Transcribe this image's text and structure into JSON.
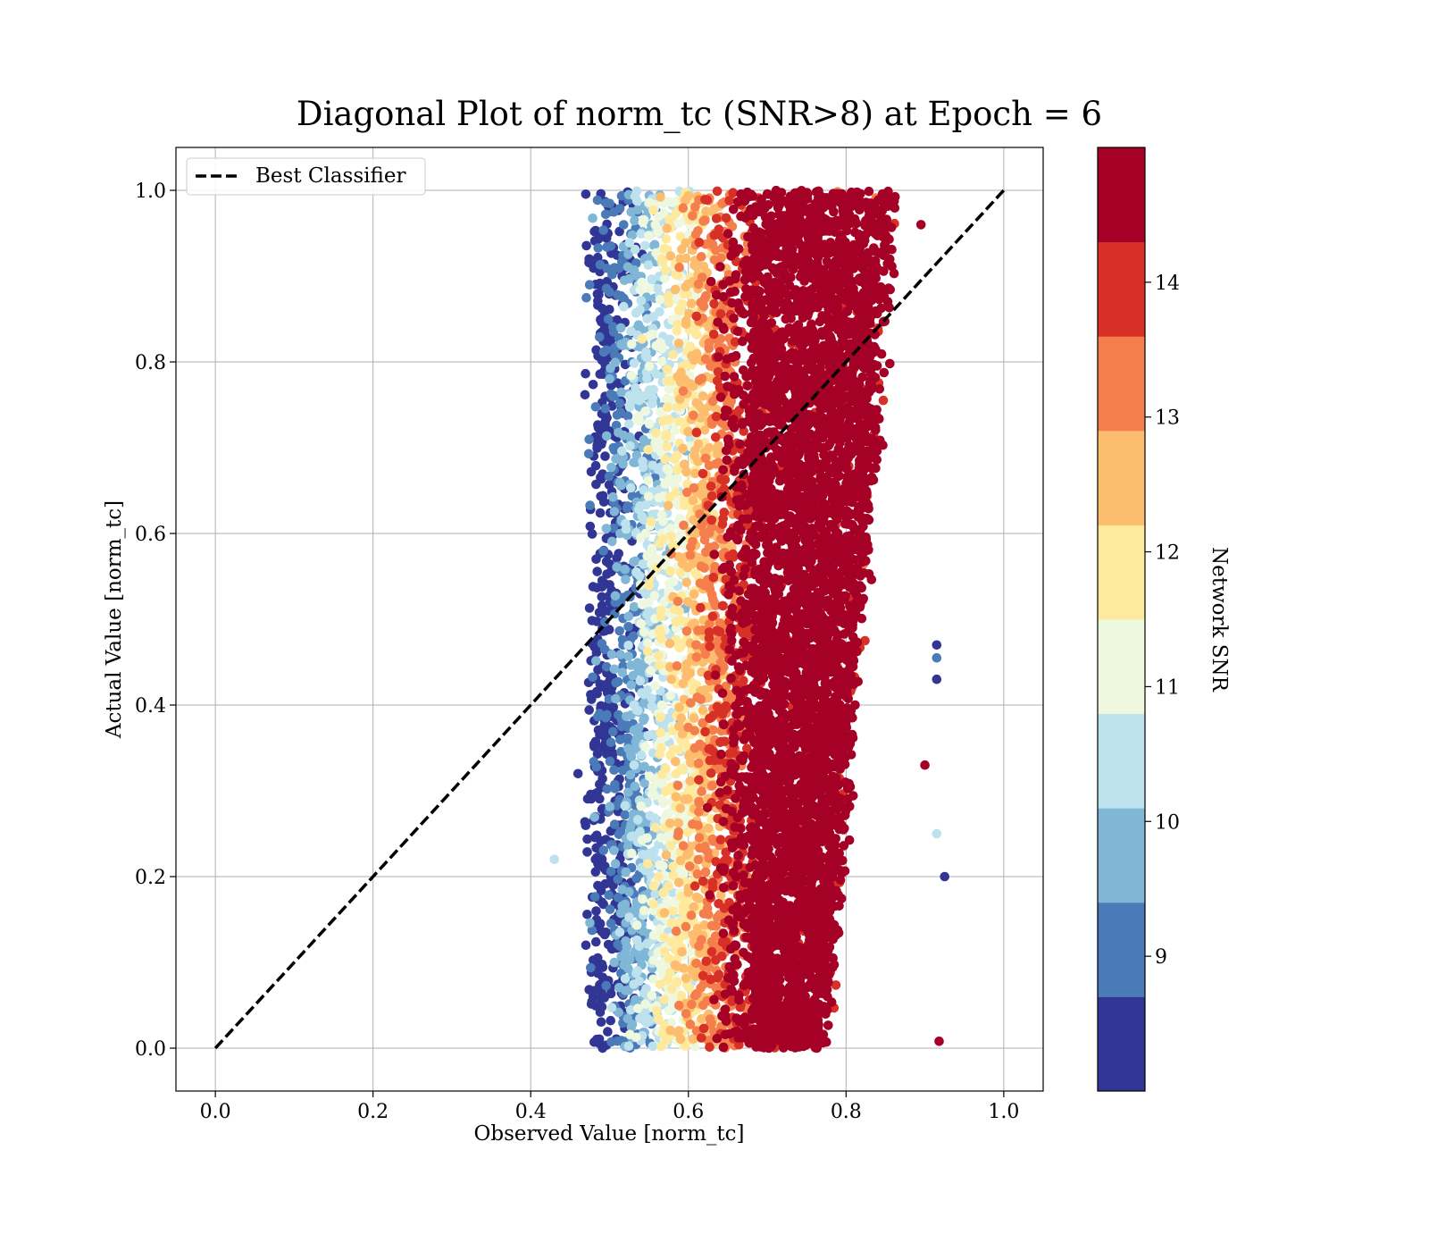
{
  "chart_data": {
    "type": "scatter",
    "title": "Diagonal Plot of norm_tc (SNR>8) at Epoch = 6",
    "xlabel": "Observed Value [norm_tc]",
    "ylabel": "Actual Value [norm_tc]",
    "xlim": [
      -0.05,
      1.05
    ],
    "ylim": [
      -0.05,
      1.05
    ],
    "xticks": [
      "0.0",
      "0.2",
      "0.4",
      "0.6",
      "0.8",
      "1.0"
    ],
    "yticks": [
      "0.0",
      "0.2",
      "0.4",
      "0.6",
      "0.8",
      "1.0"
    ],
    "xtick_values": [
      0.0,
      0.2,
      0.4,
      0.6,
      0.8,
      1.0
    ],
    "ytick_values": [
      0.0,
      0.2,
      0.4,
      0.6,
      0.8,
      1.0
    ],
    "grid": true,
    "legend": {
      "placement": "top-left",
      "entries": [
        "Best Classifier"
      ]
    },
    "reference_line": {
      "name": "Best Classifier",
      "style": "dashed",
      "color": "#000000",
      "x": [
        0.0,
        1.0
      ],
      "y": [
        0.0,
        1.0
      ]
    },
    "colorbar": {
      "label": "Network SNR",
      "colormap": "RdYlBu_r",
      "range": [
        8.0,
        15.0
      ],
      "ticks": [
        "9",
        "10",
        "11",
        "12",
        "13",
        "14"
      ],
      "tick_values": [
        9,
        10,
        11,
        12,
        13,
        14
      ],
      "colors": [
        "#313695",
        "#4a7ab7",
        "#80b6d6",
        "#bde2ee",
        "#eef8df",
        "#fee99d",
        "#fdbd6f",
        "#f47e4c",
        "#d73027",
        "#a50026"
      ]
    },
    "scatter_summary": {
      "x_range": [
        0.47,
        0.88
      ],
      "y_range": [
        0.0,
        1.0
      ],
      "high_snr_band_x": [
        0.68,
        0.83
      ],
      "outliers": [
        {
          "x": 0.43,
          "y": 0.22,
          "snr": 10.5
        },
        {
          "x": 0.46,
          "y": 0.32,
          "snr": 8.3
        },
        {
          "x": 0.47,
          "y": 0.12,
          "snr": 8.3
        },
        {
          "x": 0.915,
          "y": 0.47,
          "snr": 8.3
        },
        {
          "x": 0.915,
          "y": 0.455,
          "snr": 9.3
        },
        {
          "x": 0.915,
          "y": 0.43,
          "snr": 8.3
        },
        {
          "x": 0.915,
          "y": 0.25,
          "snr": 10.5
        },
        {
          "x": 0.925,
          "y": 0.2,
          "snr": 8.3
        },
        {
          "x": 0.918,
          "y": 0.008,
          "snr": 14.8
        },
        {
          "x": 0.9,
          "y": 0.33,
          "snr": 14.8
        },
        {
          "x": 0.895,
          "y": 0.96,
          "snr": 14.3
        }
      ]
    }
  }
}
